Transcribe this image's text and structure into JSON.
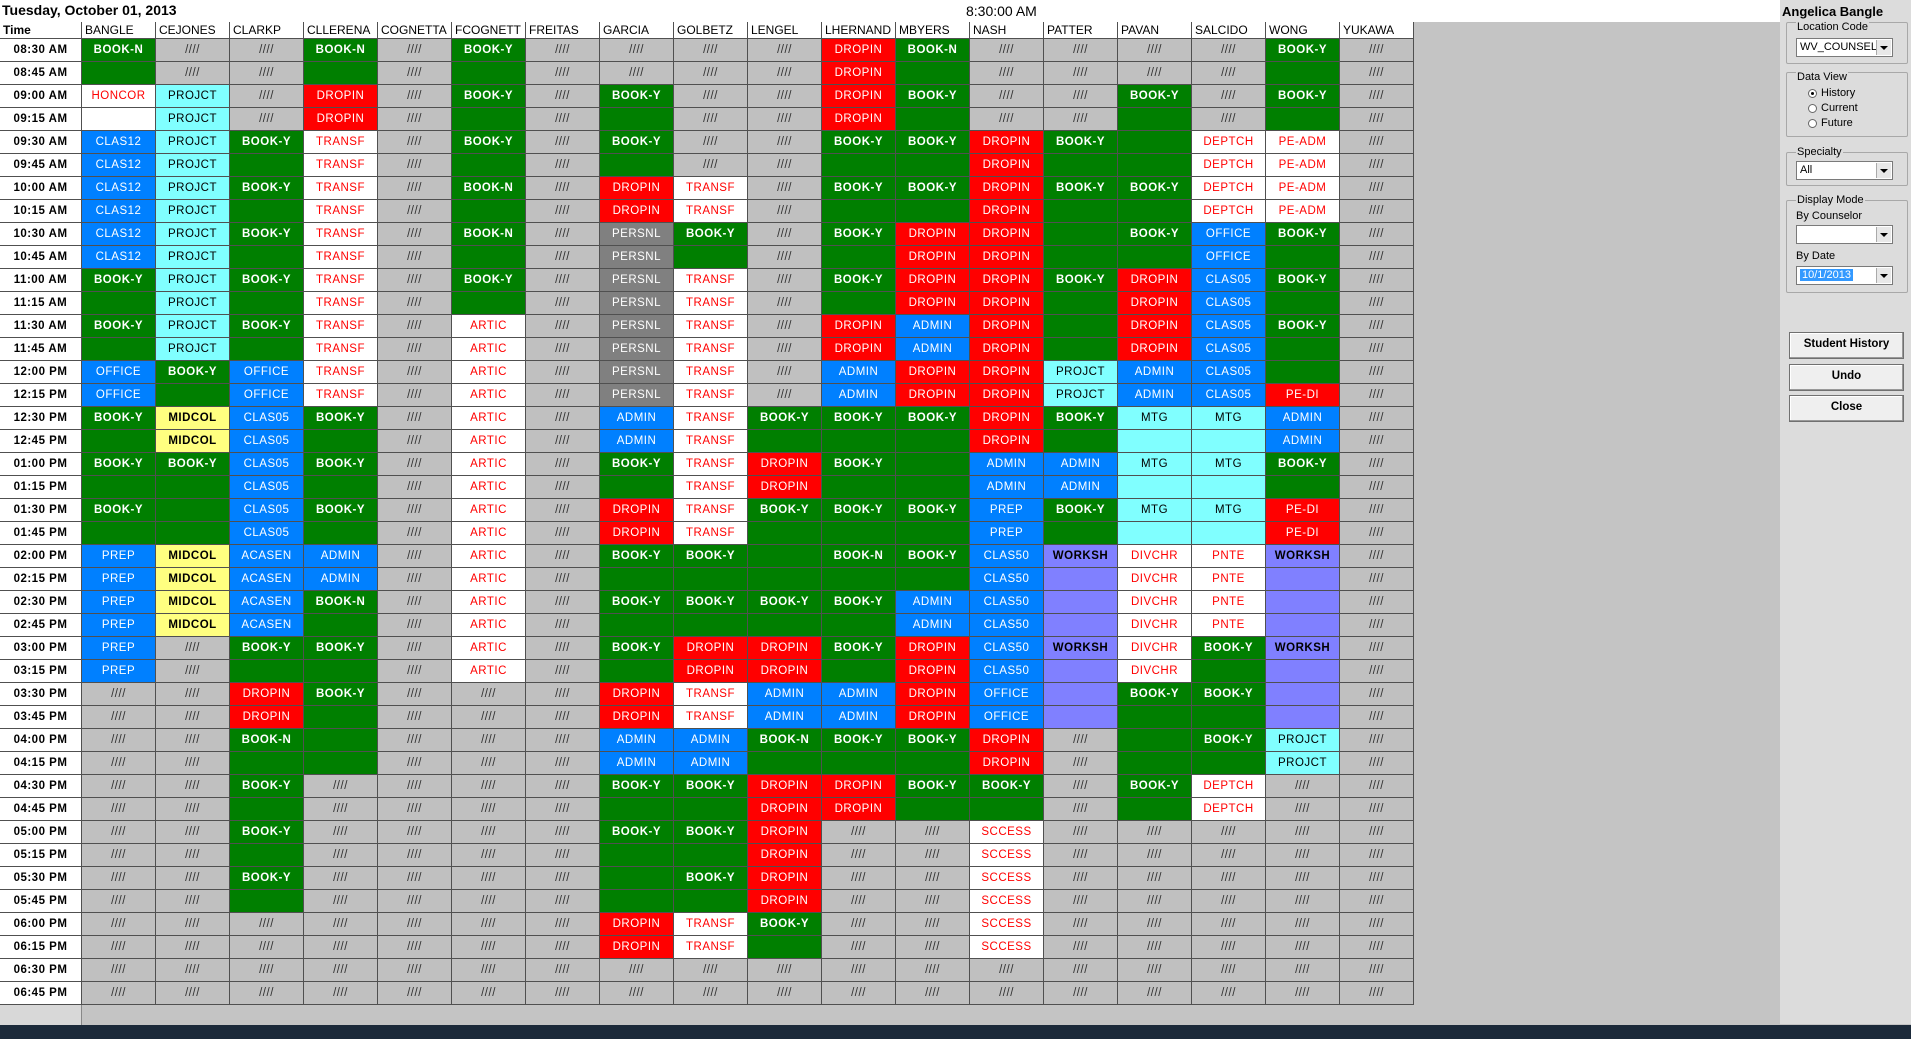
{
  "header": {
    "date": "Tuesday, October 01, 2013",
    "clock": "8:30:00 AM",
    "time_heading": "Time"
  },
  "counselors": [
    "BANGLE",
    "CEJONES",
    "CLARKP",
    "CLLERENA",
    "COGNETTA",
    "FCOGNETT",
    "FREITAS",
    "GARCIA",
    "GOLBETZ",
    "LENGEL",
    "LHERNAND",
    "MBYERS",
    "NASH",
    "PATTER",
    "PAVAN",
    "SALCIDO",
    "WONG",
    "YUKAWA"
  ],
  "palette": {
    "g": "#007f00",
    "x": "#c0c0c0",
    "r": "#ff0000",
    "b": "#0080ff",
    "c": "#80ffff",
    "w": "#ffffff",
    "y": "#ffff80",
    "p": "#8080ff",
    "d": "#808080"
  },
  "slots": [
    {
      "time": "08:30 AM",
      "fill": "gxxgxgxxxxrgxxxxgx",
      "cells": [
        "BOOK-N",
        "////",
        "////",
        "BOOK-N",
        "////",
        "BOOK-Y",
        "////",
        "////",
        "////",
        "////",
        "DROPIN",
        "BOOK-N",
        "////",
        "////",
        "////",
        "////",
        "BOOK-Y",
        "////"
      ]
    },
    {
      "time": "08:45 AM",
      "fill": "gxxgxgxxxxrgxxxxgx",
      "cells": [
        null,
        "////",
        "////",
        null,
        "////",
        null,
        "////",
        "////",
        "////",
        "////",
        "DROPIN",
        null,
        "////",
        "////",
        "////",
        "////",
        null,
        "////"
      ]
    },
    {
      "time": "09:00 AM",
      "fill": "wcxrxgxgxxrgxxgxgx",
      "cells": [
        "HONCOR",
        "PROJCT",
        "////",
        "DROPIN",
        "////",
        "BOOK-Y",
        "////",
        "BOOK-Y",
        "////",
        "////",
        "DROPIN",
        "BOOK-Y",
        "////",
        "////",
        "BOOK-Y",
        "////",
        "BOOK-Y",
        "////"
      ]
    },
    {
      "time": "09:15 AM",
      "fill": "wcxrxgxgxxrgxxgxgx",
      "cells": [
        null,
        "PROJCT",
        "////",
        "DROPIN",
        "////",
        null,
        "////",
        null,
        "////",
        "////",
        "DROPIN",
        null,
        "////",
        "////",
        null,
        "////",
        null,
        "////"
      ]
    },
    {
      "time": "09:30 AM",
      "fill": "bcgwxgxgxxggrggwwx",
      "cells": [
        "CLAS12",
        "PROJCT",
        "BOOK-Y",
        "TRANSF",
        "////",
        "BOOK-Y",
        "////",
        "BOOK-Y",
        "////",
        "////",
        "BOOK-Y",
        "BOOK-Y",
        "DROPIN",
        "BOOK-Y",
        null,
        "DEPTCH",
        "PE-ADM",
        "////"
      ]
    },
    {
      "time": "09:45 AM",
      "fill": "bcgwxgxgxxggrggwwx",
      "cells": [
        "CLAS12",
        "PROJCT",
        null,
        "TRANSF",
        "////",
        null,
        "////",
        null,
        "////",
        "////",
        null,
        null,
        "DROPIN",
        null,
        null,
        "DEPTCH",
        "PE-ADM",
        "////"
      ]
    },
    {
      "time": "10:00 AM",
      "fill": "bcgwxgxrwxggrggwwx",
      "cells": [
        "CLAS12",
        "PROJCT",
        "BOOK-Y",
        "TRANSF",
        "////",
        "BOOK-N",
        "////",
        "DROPIN",
        "TRANSF",
        "////",
        "BOOK-Y",
        "BOOK-Y",
        "DROPIN",
        "BOOK-Y",
        "BOOK-Y",
        "DEPTCH",
        "PE-ADM",
        "////"
      ]
    },
    {
      "time": "10:15 AM",
      "fill": "bcgwxgxrwxggrggwwx",
      "cells": [
        "CLAS12",
        "PROJCT",
        null,
        "TRANSF",
        "////",
        null,
        "////",
        "DROPIN",
        "TRANSF",
        "////",
        null,
        null,
        "DROPIN",
        null,
        null,
        "DEPTCH",
        "PE-ADM",
        "////"
      ]
    },
    {
      "time": "10:30 AM",
      "fill": "bcgwxgxdgxgrrggbgx",
      "cells": [
        "CLAS12",
        "PROJCT",
        "BOOK-Y",
        "TRANSF",
        "////",
        "BOOK-N",
        "////",
        "PERSNL",
        "BOOK-Y",
        "////",
        "BOOK-Y",
        "DROPIN",
        "DROPIN",
        null,
        "BOOK-Y",
        "OFFICE",
        "BOOK-Y",
        "////"
      ]
    },
    {
      "time": "10:45 AM",
      "fill": "bcgwxgxdgxgrrggbgx",
      "cells": [
        "CLAS12",
        "PROJCT",
        null,
        "TRANSF",
        "////",
        null,
        "////",
        "PERSNL",
        null,
        "////",
        null,
        "DROPIN",
        "DROPIN",
        null,
        null,
        "OFFICE",
        null,
        "////"
      ]
    },
    {
      "time": "11:00 AM",
      "fill": "gcgwxgxdwxgrrgrbgx",
      "cells": [
        "BOOK-Y",
        "PROJCT",
        "BOOK-Y",
        "TRANSF",
        "////",
        "BOOK-Y",
        "////",
        "PERSNL",
        "TRANSF",
        "////",
        "BOOK-Y",
        "DROPIN",
        "DROPIN",
        "BOOK-Y",
        "DROPIN",
        "CLAS05",
        "BOOK-Y",
        "////"
      ]
    },
    {
      "time": "11:15 AM",
      "fill": "gcgwxgxdwxgrrgrbgx",
      "cells": [
        null,
        "PROJCT",
        null,
        "TRANSF",
        "////",
        null,
        "////",
        "PERSNL",
        "TRANSF",
        "////",
        null,
        "DROPIN",
        "DROPIN",
        null,
        "DROPIN",
        "CLAS05",
        null,
        "////"
      ]
    },
    {
      "time": "11:30 AM",
      "fill": "gcgwxwxdwxrbrgrbgx",
      "cells": [
        "BOOK-Y",
        "PROJCT",
        "BOOK-Y",
        "TRANSF",
        "////",
        "ARTIC",
        "////",
        "PERSNL",
        "TRANSF",
        "////",
        "DROPIN",
        "ADMIN",
        "DROPIN",
        null,
        "DROPIN",
        "CLAS05",
        "BOOK-Y",
        "////"
      ]
    },
    {
      "time": "11:45 AM",
      "fill": "gcgwxwxdwxrbrgrbgx",
      "cells": [
        null,
        "PROJCT",
        null,
        "TRANSF",
        "////",
        "ARTIC",
        "////",
        "PERSNL",
        "TRANSF",
        "////",
        "DROPIN",
        "ADMIN",
        "DROPIN",
        null,
        "DROPIN",
        "CLAS05",
        null,
        "////"
      ]
    },
    {
      "time": "12:00 PM",
      "fill": "bgbwxwxdwxbrrcbbgx",
      "cells": [
        "OFFICE",
        "BOOK-Y",
        "OFFICE",
        "TRANSF",
        "////",
        "ARTIC",
        "////",
        "PERSNL",
        "TRANSF",
        "////",
        "ADMIN",
        "DROPIN",
        "DROPIN",
        "PROJCT",
        "ADMIN",
        "CLAS05",
        null,
        "////"
      ]
    },
    {
      "time": "12:15 PM",
      "fill": "bgbwxwxdwxbrrcbbrx",
      "cells": [
        "OFFICE",
        null,
        "OFFICE",
        "TRANSF",
        "////",
        "ARTIC",
        "////",
        "PERSNL",
        "TRANSF",
        "////",
        "ADMIN",
        "DROPIN",
        "DROPIN",
        "PROJCT",
        "ADMIN",
        "CLAS05",
        "PE-DI",
        "////"
      ]
    },
    {
      "time": "12:30 PM",
      "fill": "gybgxwxbwgggrgccbx",
      "cells": [
        "BOOK-Y",
        "MIDCOL",
        "CLAS05",
        "BOOK-Y",
        "////",
        "ARTIC",
        "////",
        "ADMIN",
        "TRANSF",
        "BOOK-Y",
        "BOOK-Y",
        "BOOK-Y",
        "DROPIN",
        "BOOK-Y",
        "MTG",
        "MTG",
        "ADMIN",
        "////"
      ]
    },
    {
      "time": "12:45 PM",
      "fill": "gybgxwxbwgggrgccbx",
      "cells": [
        null,
        "MIDCOL",
        "CLAS05",
        null,
        "////",
        "ARTIC",
        "////",
        "ADMIN",
        "TRANSF",
        null,
        null,
        null,
        "DROPIN",
        null,
        null,
        null,
        "ADMIN",
        "////"
      ]
    },
    {
      "time": "01:00 PM",
      "fill": "ggbgxwxgwrggbbccgx",
      "cells": [
        "BOOK-Y",
        "BOOK-Y",
        "CLAS05",
        "BOOK-Y",
        "////",
        "ARTIC",
        "////",
        "BOOK-Y",
        "TRANSF",
        "DROPIN",
        "BOOK-Y",
        null,
        "ADMIN",
        "ADMIN",
        "MTG",
        "MTG",
        "BOOK-Y",
        "////"
      ]
    },
    {
      "time": "01:15 PM",
      "fill": "ggbgxwxgwrggbbccgx",
      "cells": [
        null,
        null,
        "CLAS05",
        null,
        "////",
        "ARTIC",
        "////",
        null,
        "TRANSF",
        "DROPIN",
        null,
        null,
        "ADMIN",
        "ADMIN",
        null,
        null,
        null,
        "////"
      ]
    },
    {
      "time": "01:30 PM",
      "fill": "ggbgxwxrwgggbgccrx",
      "cells": [
        "BOOK-Y",
        null,
        "CLAS05",
        "BOOK-Y",
        "////",
        "ARTIC",
        "////",
        "DROPIN",
        "TRANSF",
        "BOOK-Y",
        "BOOK-Y",
        "BOOK-Y",
        "PREP",
        "BOOK-Y",
        "MTG",
        "MTG",
        "PE-DI",
        "////"
      ]
    },
    {
      "time": "01:45 PM",
      "fill": "ggbgxwxrwgggbgccrx",
      "cells": [
        null,
        null,
        "CLAS05",
        null,
        "////",
        "ARTIC",
        "////",
        "DROPIN",
        "TRANSF",
        null,
        null,
        null,
        "PREP",
        null,
        null,
        null,
        "PE-DI",
        "////"
      ]
    },
    {
      "time": "02:00 PM",
      "fill": "bybbxwxgggggbpwwpx",
      "cells": [
        "PREP",
        "MIDCOL",
        "ACASEN",
        "ADMIN",
        "////",
        "ARTIC",
        "////",
        "BOOK-Y",
        "BOOK-Y",
        null,
        "BOOK-N",
        "BOOK-Y",
        "CLAS50",
        "WORKSH",
        "DIVCHR",
        "PNTE",
        "WORKSH",
        "////"
      ]
    },
    {
      "time": "02:15 PM",
      "fill": "bybbxwxgggggbpwwpx",
      "cells": [
        "PREP",
        "MIDCOL",
        "ACASEN",
        "ADMIN",
        "////",
        "ARTIC",
        "////",
        null,
        null,
        null,
        null,
        null,
        "CLAS50",
        null,
        "DIVCHR",
        "PNTE",
        null,
        "////"
      ]
    },
    {
      "time": "02:30 PM",
      "fill": "bybgxwxggggbbpwwpx",
      "cells": [
        "PREP",
        "MIDCOL",
        "ACASEN",
        "BOOK-N",
        "////",
        "ARTIC",
        "////",
        "BOOK-Y",
        "BOOK-Y",
        "BOOK-Y",
        "BOOK-Y",
        "ADMIN",
        "CLAS50",
        null,
        "DIVCHR",
        "PNTE",
        null,
        "////"
      ]
    },
    {
      "time": "02:45 PM",
      "fill": "bybgxwxggggbbpwwpx",
      "cells": [
        "PREP",
        "MIDCOL",
        "ACASEN",
        null,
        "////",
        "ARTIC",
        "////",
        null,
        null,
        null,
        null,
        "ADMIN",
        "CLAS50",
        null,
        "DIVCHR",
        "PNTE",
        null,
        "////"
      ]
    },
    {
      "time": "03:00 PM",
      "fill": "bxggxwxgrrgrbpwgpx",
      "cells": [
        "PREP",
        "////",
        "BOOK-Y",
        "BOOK-Y",
        "////",
        "ARTIC",
        "////",
        "BOOK-Y",
        "DROPIN",
        "DROPIN",
        "BOOK-Y",
        "DROPIN",
        "CLAS50",
        "WORKSH",
        "DIVCHR",
        "BOOK-Y",
        "WORKSH",
        "////"
      ]
    },
    {
      "time": "03:15 PM",
      "fill": "bxggxwxgrrgrbpwgpx",
      "cells": [
        "PREP",
        "////",
        null,
        null,
        "////",
        "ARTIC",
        "////",
        null,
        "DROPIN",
        "DROPIN",
        null,
        "DROPIN",
        "CLAS50",
        null,
        "DIVCHR",
        null,
        null,
        "////"
      ]
    },
    {
      "time": "03:30 PM",
      "fill": "xxrgxxxrwbbrbpggpx",
      "cells": [
        "////",
        "////",
        "DROPIN",
        "BOOK-Y",
        "////",
        "////",
        "////",
        "DROPIN",
        "TRANSF",
        "ADMIN",
        "ADMIN",
        "DROPIN",
        "OFFICE",
        null,
        "BOOK-Y",
        "BOOK-Y",
        null,
        "////"
      ]
    },
    {
      "time": "03:45 PM",
      "fill": "xxrgxxxrwbbrbpggpx",
      "cells": [
        "////",
        "////",
        "DROPIN",
        null,
        "////",
        "////",
        "////",
        "DROPIN",
        "TRANSF",
        "ADMIN",
        "ADMIN",
        "DROPIN",
        "OFFICE",
        null,
        null,
        null,
        null,
        "////"
      ]
    },
    {
      "time": "04:00 PM",
      "fill": "xxggxxxbbgggrxggcx",
      "cells": [
        "////",
        "////",
        "BOOK-N",
        null,
        "////",
        "////",
        "////",
        "ADMIN",
        "ADMIN",
        "BOOK-N",
        "BOOK-Y",
        "BOOK-Y",
        "DROPIN",
        "////",
        null,
        "BOOK-Y",
        "PROJCT",
        "////"
      ]
    },
    {
      "time": "04:15 PM",
      "fill": "xxggxxxbbgggrxggcx",
      "cells": [
        "////",
        "////",
        null,
        null,
        "////",
        "////",
        "////",
        "ADMIN",
        "ADMIN",
        null,
        null,
        null,
        "DROPIN",
        "////",
        null,
        null,
        "PROJCT",
        "////"
      ]
    },
    {
      "time": "04:30 PM",
      "fill": "xxgxxxxggrrggxgwxx",
      "cells": [
        "////",
        "////",
        "BOOK-Y",
        "////",
        "////",
        "////",
        "////",
        "BOOK-Y",
        "BOOK-Y",
        "DROPIN",
        "DROPIN",
        "BOOK-Y",
        "BOOK-Y",
        "////",
        "BOOK-Y",
        "DEPTCH",
        "////",
        "////"
      ]
    },
    {
      "time": "04:45 PM",
      "fill": "xxgxxxxggrrggxgwxx",
      "cells": [
        "////",
        "////",
        null,
        "////",
        "////",
        "////",
        "////",
        null,
        null,
        "DROPIN",
        "DROPIN",
        null,
        null,
        "////",
        null,
        "DEPTCH",
        "////",
        "////"
      ]
    },
    {
      "time": "05:00 PM",
      "fill": "xxgxxxxggrxxwxxxxx",
      "cells": [
        "////",
        "////",
        "BOOK-Y",
        "////",
        "////",
        "////",
        "////",
        "BOOK-Y",
        "BOOK-Y",
        "DROPIN",
        "////",
        "////",
        "SCCESS",
        "////",
        "////",
        "////",
        "////",
        "////"
      ]
    },
    {
      "time": "05:15 PM",
      "fill": "xxgxxxxggrxxwxxxxx",
      "cells": [
        "////",
        "////",
        null,
        "////",
        "////",
        "////",
        "////",
        null,
        null,
        "DROPIN",
        "////",
        "////",
        "SCCESS",
        "////",
        "////",
        "////",
        "////",
        "////"
      ]
    },
    {
      "time": "05:30 PM",
      "fill": "xxgxxxxggrxxwxxxxx",
      "cells": [
        "////",
        "////",
        "BOOK-Y",
        "////",
        "////",
        "////",
        "////",
        null,
        "BOOK-Y",
        "DROPIN",
        "////",
        "////",
        "SCCESS",
        "////",
        "////",
        "////",
        "////",
        "////"
      ]
    },
    {
      "time": "05:45 PM",
      "fill": "xxgxxxxggrxxwxxxxx",
      "cells": [
        "////",
        "////",
        null,
        "////",
        "////",
        "////",
        "////",
        null,
        null,
        "DROPIN",
        "////",
        "////",
        "SCCESS",
        "////",
        "////",
        "////",
        "////",
        "////"
      ]
    },
    {
      "time": "06:00 PM",
      "fill": "xxxxxxxrwgxxwxxxxx",
      "cells": [
        "////",
        "////",
        "////",
        "////",
        "////",
        "////",
        "////",
        "DROPIN",
        "TRANSF",
        "BOOK-Y",
        "////",
        "////",
        "SCCESS",
        "////",
        "////",
        "////",
        "////",
        "////"
      ]
    },
    {
      "time": "06:15 PM",
      "fill": "xxxxxxxrwgxxwxxxxx",
      "cells": [
        "////",
        "////",
        "////",
        "////",
        "////",
        "////",
        "////",
        "DROPIN",
        "TRANSF",
        null,
        "////",
        "////",
        "SCCESS",
        "////",
        "////",
        "////",
        "////",
        "////"
      ]
    },
    {
      "time": "06:30 PM",
      "fill": "xxxxxxxxxxxxxxxxxx",
      "cells": [
        "////",
        "////",
        "////",
        "////",
        "////",
        "////",
        "////",
        "////",
        "////",
        "////",
        "////",
        "////",
        "////",
        "////",
        "////",
        "////",
        "////",
        "////"
      ]
    },
    {
      "time": "06:45 PM",
      "fill": "xxxxxxxxxxxxxxxxxx",
      "cells": [
        "////",
        "////",
        "////",
        "////",
        "////",
        "////",
        "////",
        "////",
        "////",
        "////",
        "////",
        "////",
        "////",
        "////",
        "////",
        "////",
        "////",
        "////"
      ]
    }
  ],
  "sidebar": {
    "user": "Angelica Bangle",
    "location_label": "Location Code",
    "location_value": "WV_COUNSEL",
    "data_view_label": "Data View",
    "data_view_options": [
      "History",
      "Current",
      "Future"
    ],
    "data_view_selected": 0,
    "specialty_label": "Specialty",
    "specialty_value": "All",
    "display_mode_label": "Display Mode",
    "by_counselor_label": "By Counselor",
    "by_date_label": "By Date",
    "by_date_value": "10/1/2013",
    "buttons": [
      "Student History",
      "Undo",
      "Close"
    ]
  }
}
